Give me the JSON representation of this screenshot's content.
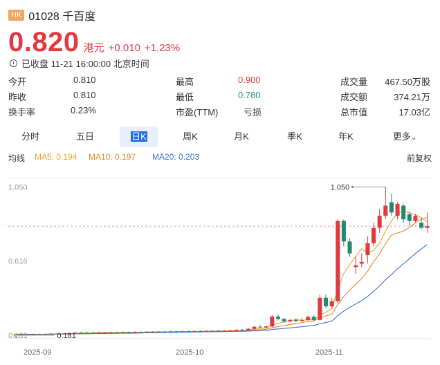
{
  "stock": {
    "market_badge": "HK",
    "title": "01028 千百度",
    "price": "0.820",
    "currency": "港元",
    "change": "+0.010",
    "change_pct": "+1.23%",
    "status": "已收盘 11-21 16:00:00 北京时间"
  },
  "stats": [
    {
      "label": "今开",
      "value": "0.810",
      "color": "#333333"
    },
    {
      "label": "最高",
      "value": "0.900",
      "color": "#e1393f"
    },
    {
      "label": "成交量",
      "value": "467.50万股",
      "color": "#333333"
    },
    {
      "label": "昨收",
      "value": "0.810",
      "color": "#333333"
    },
    {
      "label": "最低",
      "value": "0.780",
      "color": "#1f9c63"
    },
    {
      "label": "成交额",
      "value": "374.21万",
      "color": "#333333"
    },
    {
      "label": "换手率",
      "value": "0.23%",
      "color": "#333333"
    },
    {
      "label": "市盈(TTM)",
      "value": "亏损",
      "color": "#333333"
    },
    {
      "label": "总市值",
      "value": "17.03亿",
      "color": "#333333"
    }
  ],
  "tabs": [
    "分时",
    "五日",
    "日K",
    "周K",
    "月K",
    "季K",
    "年K",
    "更多"
  ],
  "active_tab": "日K",
  "indicators": {
    "label": "均线",
    "ma5": "MA5: 0.194",
    "ma10": "MA10: 0.197",
    "ma20": "MA20: 0.203",
    "adjust": "前复权"
  },
  "colors": {
    "up": "#e1393f",
    "down": "#1f8a6e",
    "ma5": "#f0a030",
    "ma10": "#e8862a",
    "ma20": "#3c6fd6",
    "accent": "#1e6ce8"
  },
  "chart_data": {
    "type": "candlestick",
    "y_ticks": [
      "1.050",
      "0.616",
      "0.181"
    ],
    "x_ticks": [
      "2025-09",
      "2025-10",
      "2025-11"
    ],
    "ylim": [
      0.16,
      1.1
    ],
    "max_label": "1.050",
    "min_label": "0.181",
    "last_close": 0.82,
    "candles": [
      {
        "o": 0.185,
        "c": 0.186,
        "h": 0.19,
        "l": 0.181
      },
      {
        "o": 0.186,
        "c": 0.185,
        "h": 0.189,
        "l": 0.183
      },
      {
        "o": 0.185,
        "c": 0.187,
        "h": 0.19,
        "l": 0.183
      },
      {
        "o": 0.187,
        "c": 0.186,
        "h": 0.19,
        "l": 0.184
      },
      {
        "o": 0.186,
        "c": 0.188,
        "h": 0.191,
        "l": 0.184
      },
      {
        "o": 0.188,
        "c": 0.187,
        "h": 0.191,
        "l": 0.185
      },
      {
        "o": 0.187,
        "c": 0.189,
        "h": 0.192,
        "l": 0.185
      },
      {
        "o": 0.189,
        "c": 0.188,
        "h": 0.192,
        "l": 0.186
      },
      {
        "o": 0.188,
        "c": 0.19,
        "h": 0.193,
        "l": 0.186
      },
      {
        "o": 0.19,
        "c": 0.192,
        "h": 0.196,
        "l": 0.188
      },
      {
        "o": 0.192,
        "c": 0.196,
        "h": 0.2,
        "l": 0.19
      },
      {
        "o": 0.196,
        "c": 0.194,
        "h": 0.2,
        "l": 0.192
      },
      {
        "o": 0.194,
        "c": 0.196,
        "h": 0.199,
        "l": 0.192
      },
      {
        "o": 0.196,
        "c": 0.195,
        "h": 0.199,
        "l": 0.193
      },
      {
        "o": 0.195,
        "c": 0.197,
        "h": 0.2,
        "l": 0.193
      },
      {
        "o": 0.197,
        "c": 0.196,
        "h": 0.2,
        "l": 0.194
      },
      {
        "o": 0.196,
        "c": 0.198,
        "h": 0.201,
        "l": 0.194
      },
      {
        "o": 0.198,
        "c": 0.197,
        "h": 0.201,
        "l": 0.195
      },
      {
        "o": 0.197,
        "c": 0.199,
        "h": 0.202,
        "l": 0.195
      },
      {
        "o": 0.199,
        "c": 0.198,
        "h": 0.202,
        "l": 0.196
      },
      {
        "o": 0.198,
        "c": 0.2,
        "h": 0.203,
        "l": 0.196
      },
      {
        "o": 0.2,
        "c": 0.199,
        "h": 0.203,
        "l": 0.197
      },
      {
        "o": 0.199,
        "c": 0.201,
        "h": 0.204,
        "l": 0.197
      },
      {
        "o": 0.201,
        "c": 0.2,
        "h": 0.204,
        "l": 0.198
      },
      {
        "o": 0.2,
        "c": 0.202,
        "h": 0.205,
        "l": 0.198
      },
      {
        "o": 0.202,
        "c": 0.201,
        "h": 0.205,
        "l": 0.199
      },
      {
        "o": 0.201,
        "c": 0.203,
        "h": 0.206,
        "l": 0.199
      },
      {
        "o": 0.203,
        "c": 0.202,
        "h": 0.206,
        "l": 0.2
      },
      {
        "o": 0.202,
        "c": 0.204,
        "h": 0.207,
        "l": 0.2
      },
      {
        "o": 0.204,
        "c": 0.203,
        "h": 0.207,
        "l": 0.201
      },
      {
        "o": 0.203,
        "c": 0.205,
        "h": 0.208,
        "l": 0.201
      },
      {
        "o": 0.205,
        "c": 0.204,
        "h": 0.208,
        "l": 0.202
      },
      {
        "o": 0.204,
        "c": 0.206,
        "h": 0.209,
        "l": 0.202
      },
      {
        "o": 0.206,
        "c": 0.205,
        "h": 0.209,
        "l": 0.203
      },
      {
        "o": 0.205,
        "c": 0.207,
        "h": 0.21,
        "l": 0.203
      },
      {
        "o": 0.207,
        "c": 0.206,
        "h": 0.21,
        "l": 0.204
      },
      {
        "o": 0.206,
        "c": 0.208,
        "h": 0.212,
        "l": 0.204
      },
      {
        "o": 0.208,
        "c": 0.212,
        "h": 0.216,
        "l": 0.206
      },
      {
        "o": 0.212,
        "c": 0.21,
        "h": 0.217,
        "l": 0.208
      },
      {
        "o": 0.21,
        "c": 0.218,
        "h": 0.224,
        "l": 0.208
      },
      {
        "o": 0.218,
        "c": 0.23,
        "h": 0.236,
        "l": 0.214
      },
      {
        "o": 0.23,
        "c": 0.226,
        "h": 0.24,
        "l": 0.222
      },
      {
        "o": 0.226,
        "c": 0.232,
        "h": 0.238,
        "l": 0.222
      },
      {
        "o": 0.232,
        "c": 0.29,
        "h": 0.3,
        "l": 0.228
      },
      {
        "o": 0.29,
        "c": 0.276,
        "h": 0.302,
        "l": 0.268
      },
      {
        "o": 0.276,
        "c": 0.262,
        "h": 0.282,
        "l": 0.254
      },
      {
        "o": 0.262,
        "c": 0.27,
        "h": 0.276,
        "l": 0.256
      },
      {
        "o": 0.27,
        "c": 0.264,
        "h": 0.278,
        "l": 0.258
      },
      {
        "o": 0.264,
        "c": 0.27,
        "h": 0.282,
        "l": 0.26
      },
      {
        "o": 0.27,
        "c": 0.288,
        "h": 0.296,
        "l": 0.266
      },
      {
        "o": 0.288,
        "c": 0.27,
        "h": 0.3,
        "l": 0.262
      },
      {
        "o": 0.27,
        "c": 0.4,
        "h": 0.42,
        "l": 0.266
      },
      {
        "o": 0.4,
        "c": 0.35,
        "h": 0.42,
        "l": 0.34
      },
      {
        "o": 0.35,
        "c": 0.38,
        "h": 0.4,
        "l": 0.34
      },
      {
        "o": 0.38,
        "c": 0.85,
        "h": 0.86,
        "l": 0.37
      },
      {
        "o": 0.85,
        "c": 0.73,
        "h": 0.86,
        "l": 0.7
      },
      {
        "o": 0.73,
        "c": 0.66,
        "h": 0.75,
        "l": 0.64
      },
      {
        "o": 0.58,
        "c": 0.59,
        "h": 0.64,
        "l": 0.54
      },
      {
        "o": 0.6,
        "c": 0.61,
        "h": 0.66,
        "l": 0.58
      },
      {
        "o": 0.65,
        "c": 0.72,
        "h": 0.76,
        "l": 0.6
      },
      {
        "o": 0.72,
        "c": 0.81,
        "h": 0.84,
        "l": 0.7
      },
      {
        "o": 0.81,
        "c": 0.88,
        "h": 0.92,
        "l": 0.78
      },
      {
        "o": 0.88,
        "c": 0.94,
        "h": 1.05,
        "l": 0.86
      },
      {
        "o": 0.96,
        "c": 0.9,
        "h": 1.01,
        "l": 0.88
      },
      {
        "o": 0.88,
        "c": 0.95,
        "h": 0.96,
        "l": 0.86
      },
      {
        "o": 0.94,
        "c": 0.86,
        "h": 0.95,
        "l": 0.84
      },
      {
        "o": 0.89,
        "c": 0.85,
        "h": 0.9,
        "l": 0.82
      },
      {
        "o": 0.85,
        "c": 0.88,
        "h": 0.89,
        "l": 0.84
      },
      {
        "o": 0.84,
        "c": 0.81,
        "h": 0.87,
        "l": 0.8
      },
      {
        "o": 0.81,
        "c": 0.82,
        "h": 0.9,
        "l": 0.78
      }
    ]
  }
}
